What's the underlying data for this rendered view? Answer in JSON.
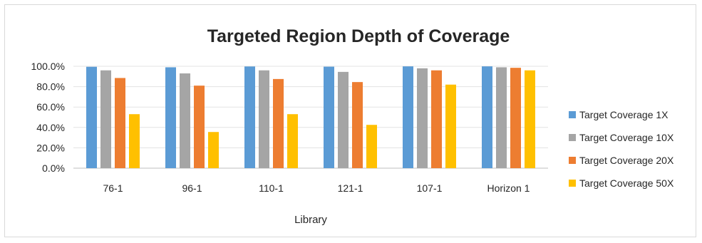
{
  "chart_data": {
    "type": "bar",
    "title": "Targeted Region Depth of Coverage",
    "xlabel": "Library",
    "ylabel": "",
    "ylim": [
      0,
      100
    ],
    "y_tick_step": 20,
    "y_tick_labels": [
      "0.0%",
      "20.0%",
      "40.0%",
      "60.0%",
      "80.0%",
      "100.0%"
    ],
    "grid": "horizontal",
    "legend_position": "right",
    "categories": [
      "76-1",
      "96-1",
      "110-1",
      "121-1",
      "107-1",
      "Horizon 1"
    ],
    "series": [
      {
        "name": "Target Coverage 1X",
        "color": "#5b9bd5",
        "values": [
          99.5,
          99.0,
          99.8,
          99.6,
          99.9,
          99.9
        ]
      },
      {
        "name": "Target Coverage 10X",
        "color": "#a5a5a5",
        "values": [
          96.0,
          93.0,
          96.0,
          94.5,
          98.0,
          99.0
        ]
      },
      {
        "name": "Target Coverage 20X",
        "color": "#ed7d31",
        "values": [
          88.5,
          81.0,
          87.5,
          84.5,
          96.0,
          98.5
        ]
      },
      {
        "name": "Target Coverage 50X",
        "color": "#ffc000",
        "values": [
          53.0,
          35.5,
          53.0,
          42.5,
          82.0,
          96.0
        ]
      }
    ]
  }
}
